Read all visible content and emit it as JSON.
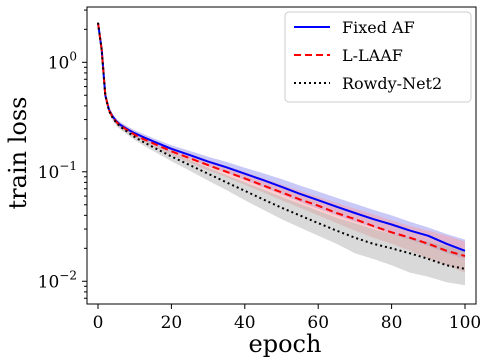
{
  "chart_data": {
    "type": "line",
    "xlabel": "epoch",
    "ylabel": "train loss",
    "xlim": [
      -3,
      103
    ],
    "ylim": [
      0.0062,
      3.2
    ],
    "y_scale": "log",
    "x_ticks": [
      0,
      20,
      40,
      60,
      80,
      100
    ],
    "x_tick_labels": [
      "0",
      "20",
      "40",
      "60",
      "80",
      "100"
    ],
    "y_ticks": [
      1,
      0.1,
      0.01
    ],
    "y_tick_labels": [
      {
        "base": "10",
        "exp": "0"
      },
      {
        "base": "10",
        "exp": "−1"
      },
      {
        "base": "10",
        "exp": "−2"
      }
    ],
    "grid": false,
    "legend_position": "top-right",
    "series": [
      {
        "name": "Fixed AF",
        "color": "#0000ff",
        "line_style": "solid",
        "band_color": "#8888ee",
        "x": [
          0,
          1,
          2,
          3,
          4,
          5,
          6,
          8,
          10,
          12,
          15,
          20,
          25,
          30,
          35,
          40,
          45,
          50,
          55,
          60,
          65,
          70,
          75,
          80,
          85,
          90,
          95,
          100
        ],
        "y": [
          2.3,
          1.3,
          0.5,
          0.37,
          0.32,
          0.29,
          0.27,
          0.245,
          0.225,
          0.21,
          0.19,
          0.162,
          0.142,
          0.124,
          0.11,
          0.096,
          0.084,
          0.073,
          0.063,
          0.055,
          0.048,
          0.042,
          0.037,
          0.033,
          0.029,
          0.026,
          0.022,
          0.019
        ],
        "band_low": [
          2.3,
          1.3,
          0.48,
          0.35,
          0.305,
          0.275,
          0.255,
          0.232,
          0.212,
          0.198,
          0.178,
          0.15,
          0.13,
          0.112,
          0.098,
          0.084,
          0.072,
          0.062,
          0.053,
          0.046,
          0.04,
          0.035,
          0.031,
          0.027,
          0.024,
          0.021,
          0.018,
          0.016
        ],
        "band_high": [
          2.3,
          1.3,
          0.52,
          0.39,
          0.335,
          0.305,
          0.285,
          0.26,
          0.24,
          0.224,
          0.203,
          0.175,
          0.155,
          0.137,
          0.123,
          0.109,
          0.097,
          0.086,
          0.075,
          0.066,
          0.058,
          0.051,
          0.045,
          0.04,
          0.035,
          0.031,
          0.027,
          0.024
        ]
      },
      {
        "name": "L-LAAF",
        "color": "#ff0000",
        "line_style": "dashed",
        "band_color": "#ff9999",
        "x": [
          0,
          1,
          2,
          3,
          4,
          5,
          6,
          8,
          10,
          12,
          15,
          20,
          25,
          30,
          35,
          40,
          45,
          50,
          55,
          60,
          65,
          70,
          75,
          80,
          85,
          90,
          95,
          100
        ],
        "y": [
          2.3,
          1.3,
          0.5,
          0.365,
          0.315,
          0.285,
          0.265,
          0.24,
          0.218,
          0.202,
          0.182,
          0.154,
          0.133,
          0.115,
          0.1,
          0.087,
          0.075,
          0.065,
          0.056,
          0.049,
          0.042,
          0.037,
          0.032,
          0.028,
          0.025,
          0.022,
          0.019,
          0.017
        ],
        "band_low": [
          2.3,
          1.3,
          0.48,
          0.345,
          0.3,
          0.27,
          0.25,
          0.226,
          0.205,
          0.19,
          0.17,
          0.142,
          0.121,
          0.103,
          0.089,
          0.076,
          0.065,
          0.055,
          0.047,
          0.04,
          0.034,
          0.029,
          0.025,
          0.022,
          0.019,
          0.016,
          0.014,
          0.012
        ],
        "band_high": [
          2.3,
          1.3,
          0.52,
          0.385,
          0.33,
          0.3,
          0.28,
          0.254,
          0.232,
          0.215,
          0.195,
          0.167,
          0.146,
          0.128,
          0.113,
          0.099,
          0.087,
          0.076,
          0.067,
          0.059,
          0.052,
          0.046,
          0.041,
          0.036,
          0.032,
          0.029,
          0.026,
          0.023
        ]
      },
      {
        "name": "Rowdy-Net2",
        "color": "#000000",
        "line_style": "dotted",
        "band_color": "#aaaaaa",
        "x": [
          0,
          1,
          2,
          3,
          4,
          5,
          6,
          8,
          10,
          12,
          15,
          20,
          25,
          30,
          35,
          40,
          45,
          50,
          55,
          60,
          65,
          70,
          75,
          80,
          85,
          90,
          95,
          100
        ],
        "y": [
          2.3,
          1.3,
          0.5,
          0.36,
          0.31,
          0.28,
          0.26,
          0.232,
          0.208,
          0.19,
          0.168,
          0.138,
          0.115,
          0.096,
          0.08,
          0.067,
          0.056,
          0.047,
          0.04,
          0.034,
          0.029,
          0.025,
          0.022,
          0.02,
          0.018,
          0.016,
          0.014,
          0.013
        ],
        "band_low": [
          2.3,
          1.3,
          0.48,
          0.34,
          0.295,
          0.265,
          0.245,
          0.218,
          0.195,
          0.177,
          0.155,
          0.125,
          0.102,
          0.083,
          0.068,
          0.055,
          0.045,
          0.037,
          0.031,
          0.026,
          0.022,
          0.018,
          0.016,
          0.014,
          0.012,
          0.011,
          0.0098,
          0.0092
        ],
        "band_high": [
          2.3,
          1.3,
          0.52,
          0.38,
          0.325,
          0.295,
          0.275,
          0.246,
          0.221,
          0.203,
          0.181,
          0.151,
          0.128,
          0.109,
          0.093,
          0.08,
          0.069,
          0.059,
          0.051,
          0.044,
          0.038,
          0.034,
          0.03,
          0.027,
          0.025,
          0.023,
          0.021,
          0.019
        ]
      }
    ]
  }
}
